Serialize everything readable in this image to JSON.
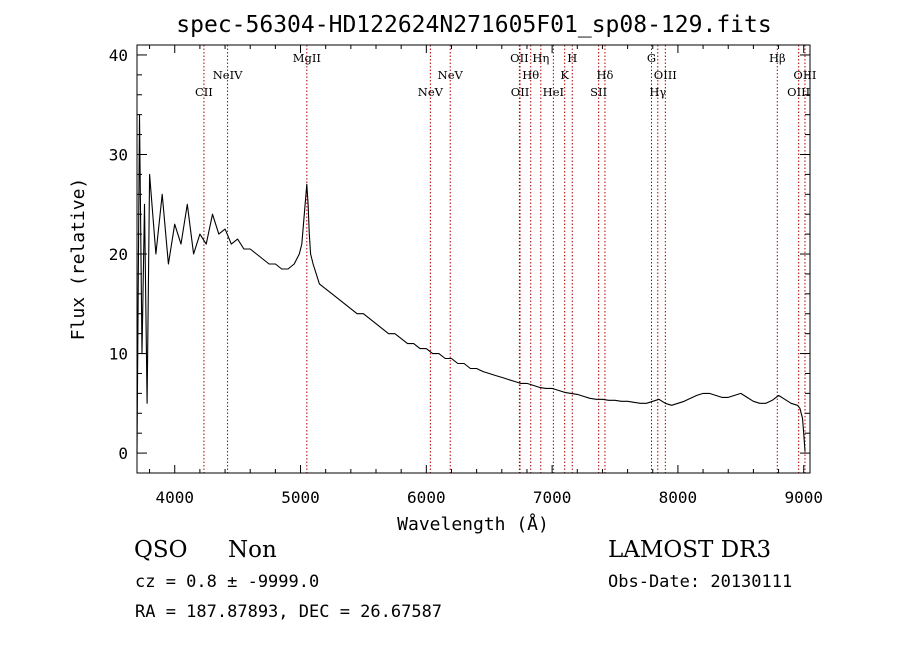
{
  "chart_data": {
    "type": "line",
    "title": "spec-56304-HD122624N271605F01_sp08-129.fits",
    "xlabel": "Wavelength (Å)",
    "ylabel": "Flux (relative)",
    "xlim": [
      3700,
      9050
    ],
    "ylim": [
      -2,
      41
    ],
    "xticks": [
      4000,
      5000,
      6000,
      7000,
      8000,
      9000
    ],
    "yticks": [
      0,
      10,
      20,
      30,
      40
    ],
    "xtick_labels": [
      "4000",
      "5000",
      "6000",
      "7000",
      "8000",
      "9000"
    ],
    "ytick_labels": [
      "0",
      "10",
      "20",
      "30",
      "40"
    ],
    "series": [
      {
        "name": "flux",
        "color": "#000000",
        "x": [
          3700,
          3720,
          3740,
          3760,
          3780,
          3800,
          3850,
          3900,
          3950,
          4000,
          4050,
          4100,
          4150,
          4200,
          4250,
          4300,
          4350,
          4400,
          4450,
          4500,
          4550,
          4600,
          4650,
          4700,
          4750,
          4800,
          4850,
          4900,
          4950,
          4990,
          5010,
          5030,
          5050,
          5060,
          5070,
          5080,
          5100,
          5150,
          5200,
          5250,
          5300,
          5350,
          5400,
          5450,
          5500,
          5550,
          5600,
          5650,
          5700,
          5750,
          5800,
          5850,
          5900,
          5950,
          6000,
          6050,
          6100,
          6150,
          6200,
          6250,
          6300,
          6350,
          6400,
          6450,
          6500,
          6550,
          6600,
          6650,
          6700,
          6750,
          6800,
          6850,
          6900,
          6950,
          7000,
          7050,
          7100,
          7150,
          7200,
          7250,
          7300,
          7350,
          7400,
          7450,
          7500,
          7550,
          7600,
          7650,
          7700,
          7750,
          7800,
          7850,
          7900,
          7950,
          8000,
          8050,
          8100,
          8150,
          8200,
          8250,
          8300,
          8350,
          8400,
          8450,
          8500,
          8550,
          8600,
          8650,
          8700,
          8750,
          8800,
          8850,
          8900,
          8950,
          8970,
          8990,
          9000,
          9010
        ],
        "y": [
          0,
          34,
          10,
          25,
          5,
          28,
          20,
          26,
          19,
          23,
          21,
          25,
          20,
          22,
          21,
          24,
          22,
          22.5,
          21,
          21.5,
          20.5,
          20.5,
          20,
          19.5,
          19,
          19,
          18.5,
          18.5,
          19,
          20,
          21,
          24,
          27,
          25,
          22,
          20,
          19,
          17,
          16.5,
          16,
          15.5,
          15,
          14.5,
          14,
          14,
          13.5,
          13,
          12.5,
          12,
          12,
          11.5,
          11,
          11,
          10.5,
          10.5,
          10,
          10,
          9.5,
          9.5,
          9,
          9,
          8.5,
          8.5,
          8.2,
          8,
          7.8,
          7.6,
          7.4,
          7.2,
          7,
          7,
          6.8,
          6.6,
          6.5,
          6.5,
          6.3,
          6.1,
          6,
          5.9,
          5.7,
          5.5,
          5.4,
          5.4,
          5.3,
          5.3,
          5.2,
          5.2,
          5.1,
          5.0,
          5.0,
          5.2,
          5.4,
          5.0,
          4.8,
          5.0,
          5.2,
          5.5,
          5.8,
          6.0,
          6.0,
          5.8,
          5.6,
          5.6,
          5.8,
          6.0,
          5.6,
          5.2,
          5.0,
          5.0,
          5.3,
          5.8,
          5.4,
          5.0,
          4.8,
          4.5,
          3.5,
          2.0,
          0.2
        ]
      }
    ],
    "lines": [
      {
        "name": "CII",
        "wavelength": 4232,
        "label_row": 2
      },
      {
        "name": "NeIV",
        "wavelength": 4420,
        "label_row": 1
      },
      {
        "name": "MgII",
        "wavelength": 5050,
        "label_row": 0
      },
      {
        "name": "NeV",
        "wavelength": 6032,
        "label_row": 2
      },
      {
        "name": "NeV",
        "wavelength": 6190,
        "label_row": 1
      },
      {
        "name": "OII",
        "wavelength": 6740,
        "label_row": 0
      },
      {
        "name": "OII",
        "wavelength": 6745,
        "label_row": 2
      },
      {
        "name": "Hθ",
        "wavelength": 6830,
        "label_row": 1
      },
      {
        "name": "Hη",
        "wavelength": 6910,
        "label_row": 0
      },
      {
        "name": "HeI",
        "wavelength": 7010,
        "label_row": 2
      },
      {
        "name": "K",
        "wavelength": 7100,
        "label_row": 1
      },
      {
        "name": "H",
        "wavelength": 7160,
        "label_row": 0
      },
      {
        "name": "SII",
        "wavelength": 7370,
        "label_row": 2
      },
      {
        "name": "Hδ",
        "wavelength": 7420,
        "label_row": 1
      },
      {
        "name": "G",
        "wavelength": 7790,
        "label_row": 0
      },
      {
        "name": "Hγ",
        "wavelength": 7840,
        "label_row": 2
      },
      {
        "name": "OIII",
        "wavelength": 7900,
        "label_row": 1
      },
      {
        "name": "Hβ",
        "wavelength": 8790,
        "label_row": 0
      },
      {
        "name": "OIII",
        "wavelength": 8960,
        "label_row": 2
      },
      {
        "name": "OIII",
        "wavelength": 9010,
        "label_row": 1
      }
    ]
  },
  "info": {
    "class": "QSO",
    "subclass": "Non",
    "survey": "LAMOST DR3",
    "cz": "cz = 0.8 ± -9999.0",
    "obs_date": "Obs-Date: 20130111",
    "coords": "RA = 187.87893, DEC =  26.67587"
  }
}
